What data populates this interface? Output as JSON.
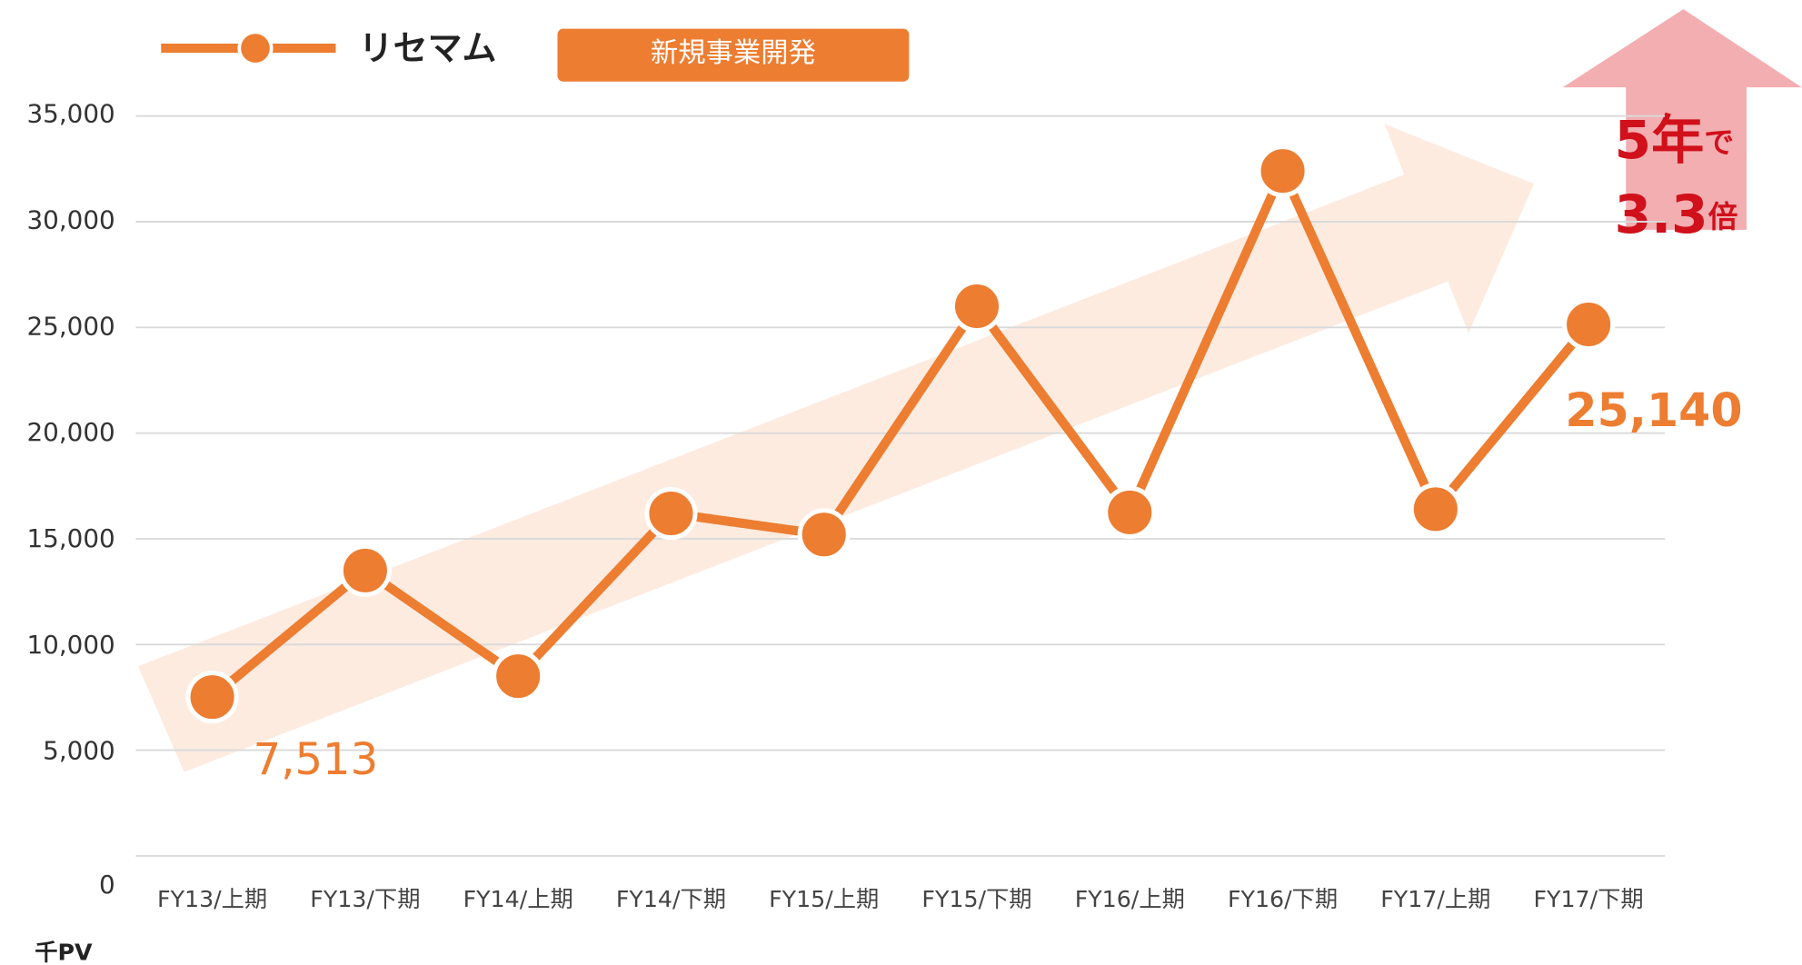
{
  "chart_data": {
    "type": "line",
    "legend_name": "リセマム",
    "badge": "新規事業開発",
    "y_unit": "千PV",
    "categories": [
      "FY13/上期",
      "FY13/下期",
      "FY14/上期",
      "FY14/下期",
      "FY15/上期",
      "FY15/下期",
      "FY16/上期",
      "FY16/下期",
      "FY17/上期",
      "FY17/下期"
    ],
    "series": [
      {
        "name": "リセマム",
        "color": "#ed7d31",
        "values": [
          7513,
          13500,
          8500,
          16200,
          15200,
          26000,
          16250,
          32400,
          16400,
          25140
        ],
        "value_labels": [
          "7,513",
          null,
          null,
          null,
          null,
          null,
          null,
          null,
          null,
          "25,140"
        ]
      }
    ],
    "ylim": [
      0,
      35000
    ],
    "yticks": [
      0,
      {
        "value": 5000,
        "label": "5,000"
      },
      {
        "value": 10000,
        "label": "10,000"
      },
      {
        "value": 15000,
        "label": "15,000"
      },
      {
        "value": 20000,
        "label": "20,000"
      },
      {
        "value": 25000,
        "label": "25,000"
      },
      {
        "value": 30000,
        "label": "30,000"
      },
      {
        "value": 35000,
        "label": "35,000"
      }
    ],
    "grid": true,
    "annotation": {
      "line1_big": "5年",
      "line1_small": "で",
      "line2_big": "3.3",
      "line2_small": "倍",
      "color": "#d0101b"
    }
  }
}
